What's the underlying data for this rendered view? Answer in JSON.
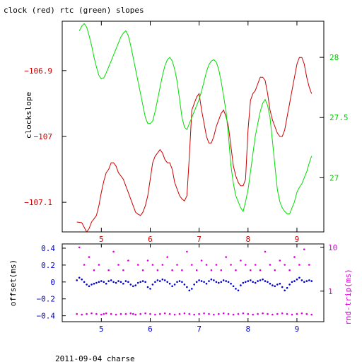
{
  "title": "clock (red) rtc (green) slopes",
  "footer": "2011-09-04 charse",
  "colors": {
    "clock": "#cc0000",
    "rtc": "#00dd00",
    "offset": "#0000cc",
    "rndtrip": "#dd00dd",
    "axes": "#000000"
  },
  "chart_data": [
    {
      "type": "line",
      "title": "clock (red) rtc (green) slopes",
      "ylabel": "clockslope",
      "xlim": [
        4.2,
        9.55
      ],
      "ylim": [
        -107.145,
        -106.825
      ],
      "y2lim": [
        26.55,
        28.3
      ],
      "x_ticks": [
        5,
        6,
        7,
        8,
        9
      ],
      "y_ticks": [
        -106.9,
        -107,
        -107.1
      ],
      "y_tick_labels": [
        "−106.9",
        "−107",
        "−107.1"
      ],
      "y2_ticks": [
        28,
        27.5,
        27
      ],
      "y2_tick_labels": [
        "28",
        "27.5",
        "27"
      ],
      "series": [
        {
          "name": "clock",
          "axis": "left",
          "x": [
            4.5,
            4.6,
            4.65,
            4.7,
            4.75,
            4.8,
            4.85,
            4.9,
            4.95,
            5.0,
            5.05,
            5.1,
            5.15,
            5.2,
            5.25,
            5.3,
            5.35,
            5.4,
            5.45,
            5.5,
            5.55,
            5.6,
            5.65,
            5.7,
            5.75,
            5.8,
            5.85,
            5.9,
            5.95,
            6.0,
            6.05,
            6.1,
            6.15,
            6.2,
            6.25,
            6.3,
            6.35,
            6.4,
            6.45,
            6.5,
            6.55,
            6.6,
            6.65,
            6.7,
            6.75,
            6.8,
            6.85,
            6.9,
            6.95,
            7.0,
            7.05,
            7.1,
            7.15,
            7.2,
            7.25,
            7.3,
            7.35,
            7.4,
            7.45,
            7.5,
            7.55,
            7.6,
            7.65,
            7.7,
            7.75,
            7.8,
            7.85,
            7.9,
            7.95,
            8.0,
            8.05,
            8.1,
            8.15,
            8.2,
            8.25,
            8.3,
            8.35,
            8.4,
            8.45,
            8.5,
            8.55,
            8.6,
            8.65,
            8.7,
            8.75,
            8.8,
            8.85,
            8.9,
            8.95,
            9.0,
            9.05,
            9.1,
            9.15,
            9.2,
            9.25,
            9.3
          ],
          "y": [
            -107.13,
            -107.131,
            -107.138,
            -107.145,
            -107.14,
            -107.13,
            -107.125,
            -107.12,
            -107.105,
            -107.085,
            -107.068,
            -107.055,
            -107.05,
            -107.04,
            -107.04,
            -107.045,
            -107.055,
            -107.06,
            -107.065,
            -107.075,
            -107.085,
            -107.095,
            -107.105,
            -107.115,
            -107.118,
            -107.12,
            -107.115,
            -107.105,
            -107.09,
            -107.065,
            -107.04,
            -107.03,
            -107.025,
            -107.02,
            -107.025,
            -107.035,
            -107.04,
            -107.04,
            -107.05,
            -107.07,
            -107.08,
            -107.09,
            -107.095,
            -107.098,
            -107.09,
            -107.03,
            -106.96,
            -106.95,
            -106.94,
            -106.935,
            -106.96,
            -106.98,
            -107.0,
            -107.01,
            -107.01,
            -107.0,
            -106.985,
            -106.975,
            -106.965,
            -106.96,
            -106.97,
            -106.985,
            -107.015,
            -107.045,
            -107.06,
            -107.07,
            -107.075,
            -107.075,
            -107.065,
            -106.99,
            -106.945,
            -106.935,
            -106.93,
            -106.92,
            -106.91,
            -106.91,
            -106.915,
            -106.935,
            -106.96,
            -106.975,
            -106.985,
            -106.995,
            -107.0,
            -107.0,
            -106.99,
            -106.97,
            -106.95,
            -106.93,
            -106.91,
            -106.89,
            -106.88,
            -106.88,
            -106.89,
            -106.91,
            -106.925,
            -106.935
          ]
        },
        {
          "name": "rtc",
          "axis": "right",
          "x": [
            4.55,
            4.6,
            4.65,
            4.7,
            4.75,
            4.8,
            4.85,
            4.9,
            4.95,
            5.0,
            5.05,
            5.1,
            5.15,
            5.2,
            5.25,
            5.3,
            5.35,
            5.4,
            5.45,
            5.5,
            5.55,
            5.6,
            5.65,
            5.7,
            5.75,
            5.8,
            5.85,
            5.9,
            5.95,
            6.0,
            6.05,
            6.1,
            6.15,
            6.2,
            6.25,
            6.3,
            6.35,
            6.4,
            6.45,
            6.5,
            6.55,
            6.6,
            6.65,
            6.7,
            6.75,
            6.8,
            6.85,
            6.9,
            6.95,
            7.0,
            7.05,
            7.1,
            7.15,
            7.2,
            7.25,
            7.3,
            7.35,
            7.4,
            7.45,
            7.5,
            7.55,
            7.6,
            7.65,
            7.7,
            7.75,
            7.8,
            7.85,
            7.9,
            7.95,
            8.0,
            8.05,
            8.1,
            8.15,
            8.2,
            8.25,
            8.3,
            8.35,
            8.4,
            8.45,
            8.5,
            8.55,
            8.6,
            8.65,
            8.7,
            8.75,
            8.8,
            8.85,
            8.9,
            8.95,
            9.0,
            9.05,
            9.1,
            9.15,
            9.2,
            9.25,
            9.3
          ],
          "y": [
            28.22,
            28.26,
            28.28,
            28.25,
            28.18,
            28.1,
            28.0,
            27.92,
            27.85,
            27.82,
            27.83,
            27.87,
            27.92,
            27.97,
            28.02,
            28.07,
            28.12,
            28.17,
            28.2,
            28.22,
            28.18,
            28.1,
            28.0,
            27.9,
            27.8,
            27.7,
            27.6,
            27.5,
            27.45,
            27.45,
            27.47,
            27.55,
            27.65,
            27.75,
            27.85,
            27.93,
            27.98,
            28.0,
            27.97,
            27.9,
            27.8,
            27.65,
            27.5,
            27.42,
            27.4,
            27.45,
            27.5,
            27.55,
            27.6,
            27.65,
            27.72,
            27.8,
            27.88,
            27.94,
            27.97,
            27.98,
            27.96,
            27.9,
            27.8,
            27.68,
            27.55,
            27.35,
            27.1,
            26.95,
            26.85,
            26.8,
            26.75,
            26.72,
            26.8,
            26.9,
            27.05,
            27.2,
            27.35,
            27.45,
            27.55,
            27.62,
            27.65,
            27.6,
            27.5,
            27.3,
            27.1,
            26.9,
            26.8,
            26.75,
            26.72,
            26.7,
            26.7,
            26.75,
            26.8,
            26.88,
            26.92,
            26.95,
            27.0,
            27.05,
            27.12,
            27.18
          ]
        }
      ]
    },
    {
      "type": "scatter",
      "ylabel": "offset(ms)",
      "y2label": "rnd-trip(ms)",
      "xlim": [
        4.2,
        9.55
      ],
      "ylim": [
        -0.47,
        0.45
      ],
      "y2lim_log": [
        0.2,
        12
      ],
      "x_ticks": [
        5,
        6,
        7,
        8,
        9
      ],
      "y_ticks": [
        0.4,
        0.2,
        0,
        -0.2,
        -0.4
      ],
      "y_tick_labels": [
        "0.4",
        "0.2",
        "0",
        "−0.2",
        "−0.4"
      ],
      "y2_ticks": [
        10,
        1
      ],
      "y2_tick_labels": [
        "10",
        "1"
      ],
      "series": [
        {
          "name": "offset",
          "axis": "left",
          "x": [
            4.5,
            4.55,
            4.6,
            4.65,
            4.7,
            4.75,
            4.8,
            4.85,
            4.9,
            4.95,
            5.0,
            5.05,
            5.1,
            5.15,
            5.2,
            5.25,
            5.3,
            5.35,
            5.4,
            5.45,
            5.5,
            5.55,
            5.6,
            5.65,
            5.7,
            5.75,
            5.8,
            5.85,
            5.9,
            5.95,
            6.0,
            6.05,
            6.1,
            6.15,
            6.2,
            6.25,
            6.3,
            6.35,
            6.4,
            6.45,
            6.5,
            6.55,
            6.6,
            6.65,
            6.7,
            6.75,
            6.8,
            6.85,
            6.9,
            6.95,
            7.0,
            7.05,
            7.1,
            7.15,
            7.2,
            7.25,
            7.3,
            7.35,
            7.4,
            7.45,
            7.5,
            7.55,
            7.6,
            7.65,
            7.7,
            7.75,
            7.8,
            7.85,
            7.9,
            7.95,
            8.0,
            8.05,
            8.1,
            8.15,
            8.2,
            8.25,
            8.3,
            8.35,
            8.4,
            8.45,
            8.5,
            8.55,
            8.6,
            8.65,
            8.7,
            8.75,
            8.8,
            8.85,
            8.9,
            8.95,
            9.0,
            9.05,
            9.1,
            9.15,
            9.2,
            9.25,
            9.3
          ],
          "y": [
            0.02,
            0.05,
            0.03,
            0.0,
            -0.03,
            -0.05,
            -0.03,
            -0.02,
            -0.01,
            0.0,
            0.01,
            0.0,
            -0.02,
            0.01,
            0.02,
            0.0,
            -0.01,
            0.01,
            0.0,
            -0.02,
            0.01,
            0.0,
            -0.03,
            -0.05,
            -0.04,
            -0.01,
            0.0,
            0.01,
            0.0,
            -0.06,
            -0.08,
            -0.03,
            0.0,
            0.02,
            0.01,
            0.03,
            0.02,
            0.0,
            -0.02,
            -0.05,
            -0.03,
            0.0,
            0.01,
            0.0,
            -0.03,
            -0.06,
            -0.1,
            -0.08,
            -0.03,
            0.0,
            0.02,
            0.01,
            0.0,
            -0.02,
            0.01,
            0.03,
            0.02,
            0.0,
            -0.01,
            0.0,
            0.02,
            0.01,
            0.0,
            -0.02,
            -0.05,
            -0.08,
            -0.1,
            -0.04,
            -0.01,
            0.0,
            0.01,
            0.02,
            0.0,
            -0.01,
            0.01,
            0.02,
            0.03,
            0.01,
            0.0,
            -0.02,
            -0.04,
            -0.05,
            -0.03,
            -0.02,
            -0.06,
            -0.1,
            -0.07,
            -0.03,
            0.0,
            0.01,
            0.03,
            0.05,
            0.02,
            0.0,
            0.01,
            0.02,
            0.01
          ]
        },
        {
          "name": "rnd-trip",
          "axis": "right",
          "x": [
            4.5,
            4.6,
            4.7,
            4.8,
            4.9,
            5.0,
            5.05,
            5.1,
            5.2,
            5.3,
            5.4,
            5.5,
            5.6,
            5.65,
            5.7,
            5.8,
            5.9,
            6.0,
            6.1,
            6.2,
            6.3,
            6.4,
            6.5,
            6.6,
            6.7,
            6.8,
            6.9,
            7.0,
            7.1,
            7.2,
            7.3,
            7.4,
            7.5,
            7.6,
            7.7,
            7.8,
            7.9,
            8.0,
            8.1,
            8.2,
            8.3,
            8.4,
            8.5,
            8.6,
            8.7,
            8.8,
            8.9,
            9.0,
            9.1,
            9.2,
            9.3,
            4.55,
            4.65,
            4.75,
            4.85,
            4.95,
            5.15,
            5.25,
            5.35,
            5.45,
            5.55,
            5.75,
            5.85,
            5.95,
            6.05,
            6.15,
            6.25,
            6.35,
            6.45,
            6.55,
            6.65,
            6.75,
            6.85,
            6.95,
            7.05,
            7.15,
            7.25,
            7.35,
            7.45,
            7.55,
            7.65,
            7.75,
            7.85,
            7.95,
            8.05,
            8.15,
            8.25,
            8.35,
            8.45,
            8.55,
            8.65,
            8.75,
            8.85,
            8.95,
            9.05,
            9.15,
            9.25
          ],
          "y": [
            0.3,
            0.29,
            0.3,
            0.31,
            0.3,
            0.29,
            0.3,
            0.31,
            0.3,
            0.29,
            0.3,
            0.3,
            0.31,
            0.3,
            0.29,
            0.3,
            0.31,
            0.3,
            0.29,
            0.3,
            0.31,
            0.3,
            0.29,
            0.3,
            0.31,
            0.3,
            0.29,
            0.3,
            0.31,
            0.3,
            0.29,
            0.3,
            0.31,
            0.3,
            0.29,
            0.3,
            0.31,
            0.3,
            0.29,
            0.3,
            0.31,
            0.3,
            0.29,
            0.3,
            0.31,
            0.3,
            0.29,
            0.3,
            0.31,
            0.3,
            0.29,
            10,
            4,
            6,
            3,
            4,
            3,
            8,
            4,
            3,
            5,
            4,
            3,
            5,
            4,
            3,
            4,
            6,
            3,
            4,
            3,
            8,
            4,
            3,
            5,
            4,
            3,
            4,
            3,
            6,
            4,
            3,
            5,
            4,
            3,
            4,
            3,
            8,
            4,
            3,
            5,
            4,
            3,
            6,
            4,
            9,
            4
          ]
        }
      ]
    }
  ]
}
